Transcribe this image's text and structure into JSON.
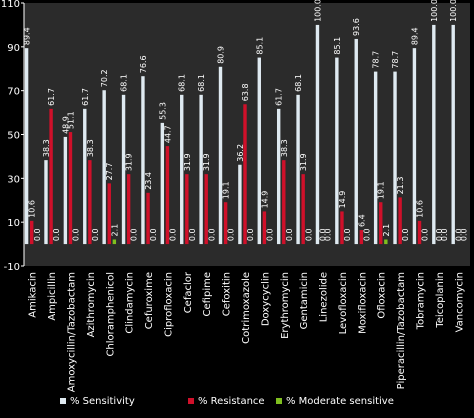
{
  "chart_data": {
    "type": "bar",
    "categories": [
      "Amikacin",
      "Ampicillin",
      "Amoxycillin/Tazobactam",
      "Azithromycin",
      "Chloramphenicol",
      "Clindamycin",
      "Cefuroxime",
      "Ciprofloxacin",
      "Cefaclor",
      "Cefipime",
      "Cefoxitin",
      "Cotrimoxazole",
      "Doxycyclin",
      "Erythromycin",
      "Gentamicin",
      "Linezolide",
      "Levofloxacin",
      "Moxifloxacin",
      "Ofloxacin",
      "Piperacillin/Tazobactam",
      "Tobramycin",
      "Teicoplanin",
      "Vancomycin"
    ],
    "series": [
      {
        "name": "% Sensitivity",
        "color": "#dfeaf1",
        "values": [
          89.4,
          38.3,
          48.9,
          61.7,
          70.2,
          68.1,
          76.6,
          55.3,
          68.1,
          68.1,
          80.9,
          36.2,
          85.1,
          61.7,
          68.1,
          100.0,
          85.1,
          93.6,
          78.7,
          78.7,
          89.4,
          100.0,
          100.0
        ],
        "labels": [
          "89.4",
          "38.3",
          "48.9",
          "61.7",
          "70.2",
          "68.1",
          "76.6",
          "55.3",
          "68.1",
          "68.1",
          "80.9",
          "36.2",
          "85.1",
          "61.7",
          "68.1",
          "100.0",
          "85.1",
          "93.6",
          "78.7",
          "78.7",
          "89.4",
          "100.0",
          "100.0"
        ]
      },
      {
        "name": "% Resistance",
        "color": "#d0102a",
        "values": [
          10.6,
          61.7,
          51.1,
          38.3,
          27.7,
          31.9,
          23.4,
          44.7,
          31.9,
          31.9,
          19.1,
          63.8,
          14.9,
          38.3,
          31.9,
          0.0,
          14.9,
          6.4,
          19.1,
          21.3,
          10.6,
          0.0,
          0.0
        ],
        "labels": [
          "10.6",
          "61.7",
          "51.1",
          "38.3",
          "27.7",
          "31.9",
          "23.4",
          "44.7",
          "31.9",
          "31.9",
          "19.1",
          "63.8",
          "14.9",
          "38.3",
          "31.9",
          "0.0",
          "14.9",
          "6.4",
          "19.1",
          "21.3",
          "10.6",
          "0.0",
          "0.0"
        ]
      },
      {
        "name": "% Moderate sensitive",
        "color": "#7fbf1f",
        "values": [
          0.0,
          0.0,
          0.0,
          0.0,
          2.1,
          0.0,
          0.0,
          0.0,
          0.0,
          0.0,
          0.0,
          0.0,
          0.0,
          0.0,
          0.0,
          0.0,
          0.0,
          0.0,
          2.1,
          0.0,
          0.0,
          0.0,
          0.0
        ],
        "labels": [
          "0.0",
          "0.0",
          "0.0",
          "0.0",
          "2.1",
          "0.0",
          "0.0",
          "0.0",
          "0.0",
          "0.0",
          "0.0",
          "0.0",
          "0.0",
          "0.0",
          "0.0",
          "0.0",
          "0.0",
          "0.0",
          "2.1",
          "0.0",
          "0.0",
          "0.0",
          "0.0"
        ]
      }
    ],
    "y_ticks": [
      "-10",
      "10",
      "30",
      "50",
      "70",
      "90",
      "110"
    ],
    "ylim": [
      -10,
      110
    ],
    "legend_position": "bottom",
    "grid": false,
    "colors": {
      "background": "#000000",
      "plot_background": "#2b2b2b",
      "text": "#ffffff"
    }
  }
}
